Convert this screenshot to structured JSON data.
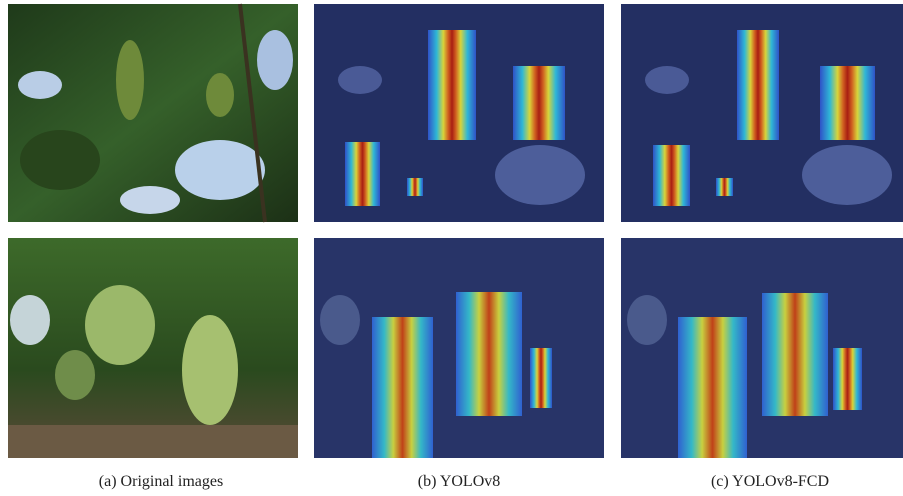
{
  "panels": [
    {
      "caption": "(a) Original images"
    },
    {
      "caption": "(b) YOLOv8"
    },
    {
      "caption": "(c) YOLOv8-FCD"
    }
  ]
}
